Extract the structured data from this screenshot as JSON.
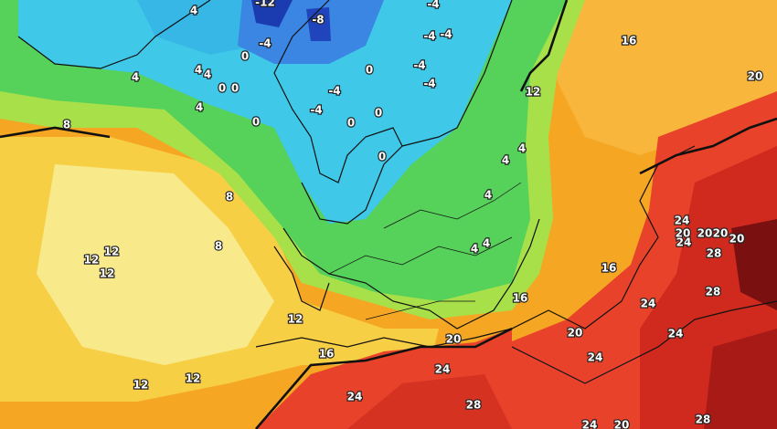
{
  "labels": [
    4,
    -12,
    -8,
    -4,
    -4,
    -4,
    -4,
    0,
    4,
    4,
    0,
    0,
    4,
    4,
    0,
    0,
    -4,
    -4,
    -4,
    -4,
    0,
    0,
    0,
    16,
    20,
    12,
    8,
    4,
    4,
    4,
    8,
    8,
    4,
    4,
    12,
    12,
    12,
    16,
    16,
    12,
    24,
    20,
    24,
    20,
    20,
    20,
    28,
    28,
    24,
    20,
    20,
    24,
    16,
    24,
    24,
    12,
    12,
    24,
    28,
    28,
    20,
    24
  ]
}
